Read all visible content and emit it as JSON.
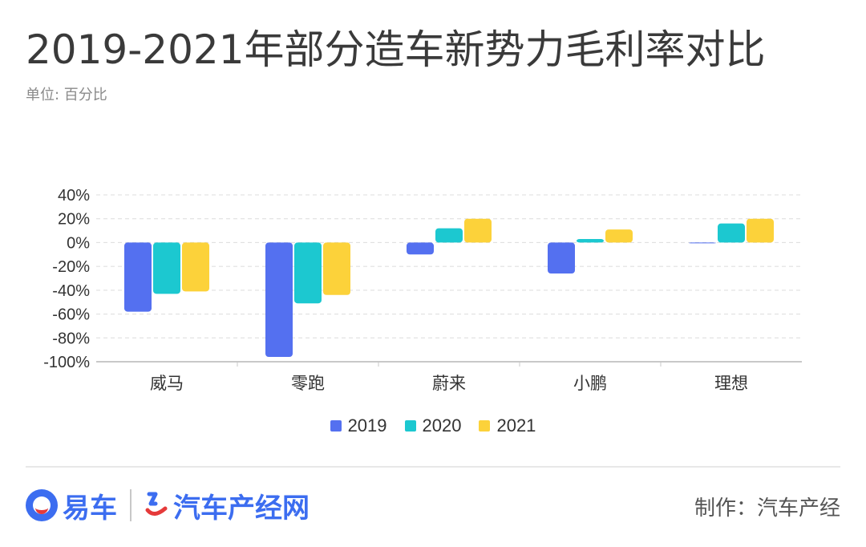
{
  "title": "2019-2021年部分造车新势力毛利率对比",
  "subtitle": "单位: 百分比",
  "footer": {
    "logo1_text": "易车",
    "logo2_text": "汽车产经网",
    "credit": "制作：汽车产经"
  },
  "colors": {
    "2019": "#5470f0",
    "2020": "#1cc8d0",
    "2021": "#fcd23a"
  },
  "chart_data": {
    "type": "bar",
    "title": "2019-2021年部分造车新势力毛利率对比",
    "ylabel": "单位: 百分比",
    "categories": [
      "威马",
      "零跑",
      "蔚来",
      "小鹏",
      "理想"
    ],
    "series": [
      {
        "name": "2019",
        "values": [
          -58,
          -96,
          -10,
          -26,
          0
        ]
      },
      {
        "name": "2020",
        "values": [
          -43,
          -51,
          12,
          3,
          16
        ]
      },
      {
        "name": "2021",
        "values": [
          -41,
          -44,
          20,
          11,
          20
        ]
      }
    ],
    "ylim": [
      -100,
      40
    ],
    "yticks": [
      40,
      20,
      0,
      -20,
      -40,
      -60,
      -80,
      -100
    ],
    "ytick_labels": [
      "40%",
      "20%",
      "0%",
      "-20%",
      "-40%",
      "-60%",
      "-80%",
      "-100%"
    ],
    "legend": "bottom-center",
    "grid": true
  }
}
